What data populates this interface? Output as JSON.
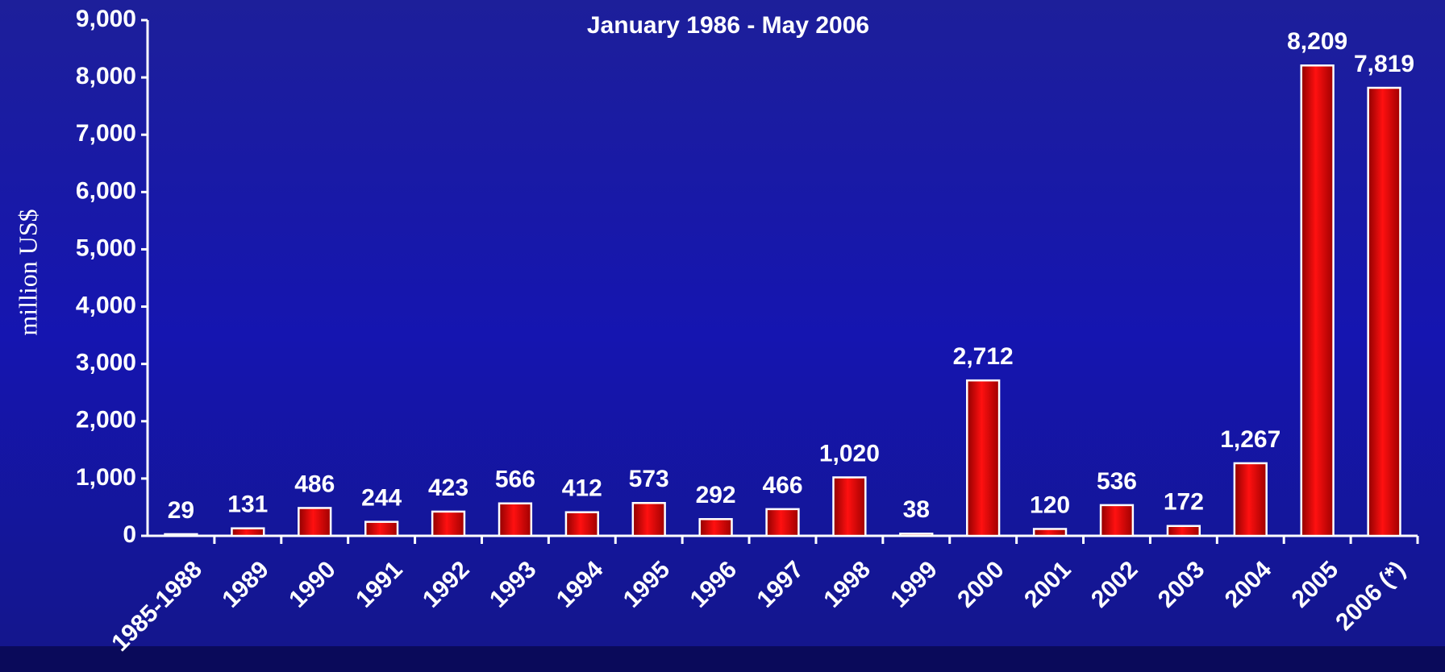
{
  "chart_data": {
    "type": "bar",
    "title": "January 1986 -  May 2006",
    "y_label": "million US$",
    "categories": [
      "1985-1988",
      "1989",
      "1990",
      "1991",
      "1992",
      "1993",
      "1994",
      "1995",
      "1996",
      "1997",
      "1998",
      "1999",
      "2000",
      "2001",
      "2002",
      "2003",
      "2004",
      "2005",
      "2006 (*)"
    ],
    "values": [
      29,
      131,
      486,
      244,
      423,
      566,
      412,
      573,
      292,
      466,
      1020,
      38,
      2712,
      120,
      536,
      172,
      1267,
      8209,
      7819
    ],
    "value_labels": [
      "29",
      "131",
      "486",
      "244",
      "423",
      "566",
      "412",
      "573",
      "292",
      "466",
      "1,020",
      "38",
      "2,712",
      "120",
      "536",
      "172",
      "1,267",
      "8,209",
      "7,819"
    ],
    "color": "#e80000",
    "ylim": [
      0,
      9000
    ],
    "yticks": [
      0,
      {
        "value": 1000,
        "label": "1,000"
      },
      {
        "value": 2000,
        "label": "2,000"
      },
      {
        "value": 3000,
        "label": "3,000"
      },
      {
        "value": 4000,
        "label": "4,000"
      },
      {
        "value": 5000,
        "label": "5,000"
      },
      {
        "value": 6000,
        "label": "6,000"
      },
      {
        "value": 7000,
        "label": "7,000"
      },
      {
        "value": 8000,
        "label": "8,000"
      },
      {
        "value": 9000,
        "label": "9,000"
      }
    ],
    "grid": false
  }
}
